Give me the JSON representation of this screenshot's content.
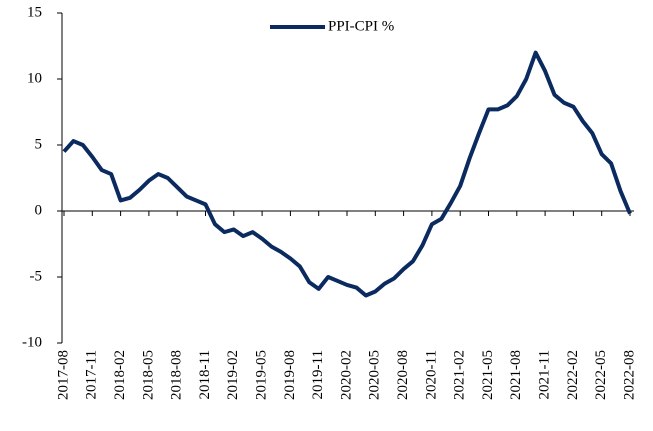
{
  "chart_data": {
    "type": "line",
    "categories": [
      "2017-08",
      null,
      null,
      "2017-11",
      null,
      null,
      "2018-02",
      null,
      null,
      "2018-05",
      null,
      null,
      "2018-08",
      null,
      null,
      "2018-11",
      null,
      null,
      "2019-02",
      null,
      null,
      "2019-05",
      null,
      null,
      "2019-08",
      null,
      null,
      "2019-11",
      null,
      null,
      "2020-02",
      null,
      null,
      "2020-05",
      null,
      null,
      "2020-08",
      null,
      null,
      "2020-11",
      null,
      null,
      "2021-02",
      null,
      null,
      "2021-05",
      null,
      null,
      "2021-08",
      null,
      null,
      "2021-11",
      null,
      null,
      "2022-02",
      null,
      null,
      "2022-05",
      null,
      null,
      "2022-08"
    ],
    "series": [
      {
        "name": "PPI-CPI %",
        "color": "#0b2a5f",
        "values": [
          4.5,
          5.3,
          5.0,
          4.1,
          3.1,
          2.8,
          0.8,
          1.0,
          1.6,
          2.3,
          2.8,
          2.5,
          1.8,
          1.1,
          0.8,
          0.5,
          -1.0,
          -1.6,
          -1.4,
          -1.9,
          -1.6,
          -2.1,
          -2.7,
          -3.1,
          -3.6,
          -4.2,
          -5.4,
          -5.9,
          -5.0,
          -5.3,
          -5.6,
          -5.8,
          -6.4,
          -6.1,
          -5.5,
          -5.1,
          -4.4,
          -3.8,
          -2.6,
          -1.0,
          -0.6,
          0.6,
          1.9,
          4.0,
          5.9,
          7.7,
          7.7,
          8.0,
          8.7,
          10.0,
          12.0,
          10.6,
          8.8,
          8.2,
          7.9,
          6.8,
          5.9,
          4.3,
          3.6,
          1.5,
          -0.2
        ]
      }
    ],
    "ylim": [
      -10,
      15
    ],
    "yticks": [
      -10,
      -5,
      0,
      5,
      10,
      15
    ],
    "legend": "top"
  }
}
